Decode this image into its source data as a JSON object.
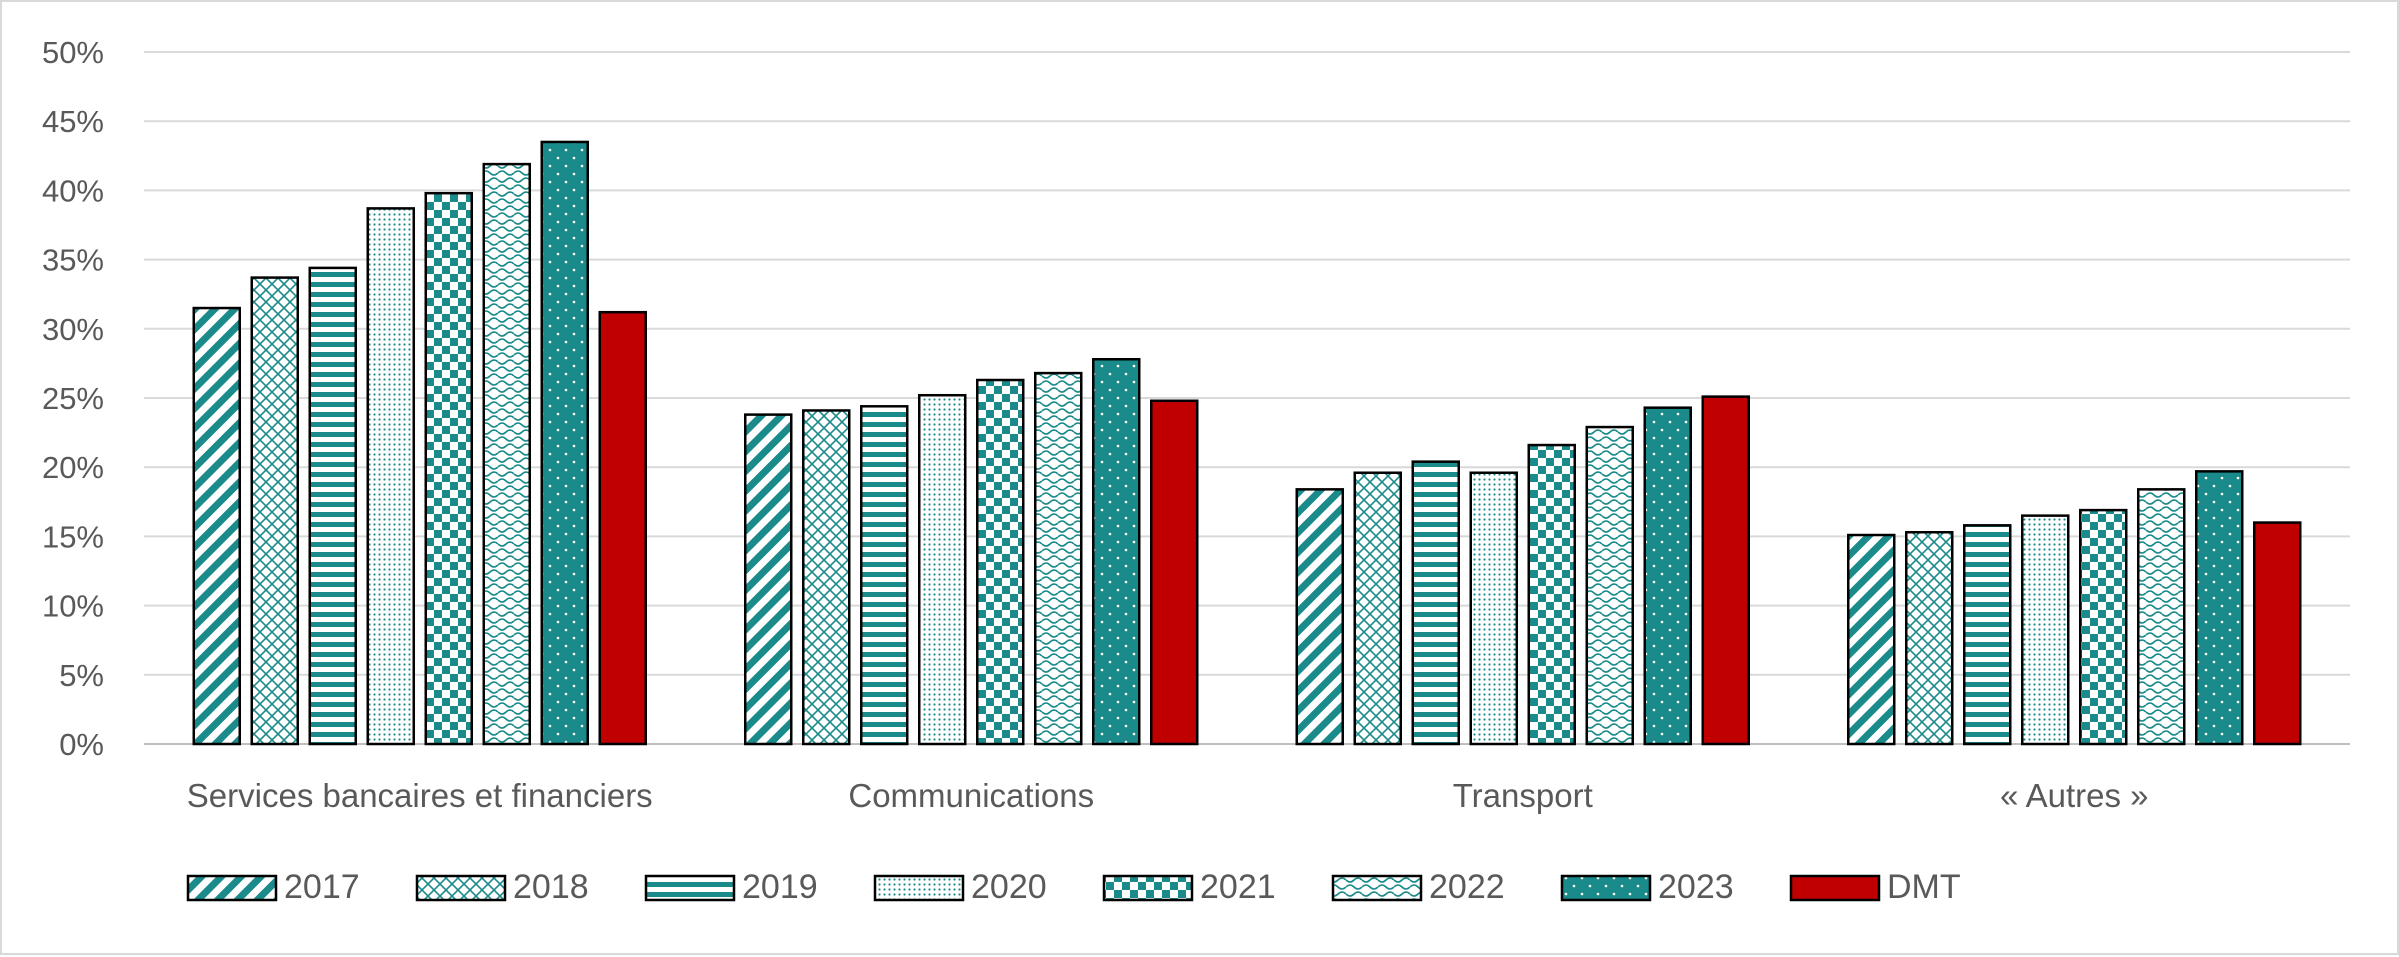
{
  "chart_data": {
    "type": "bar",
    "categories": [
      "Services bancaires et financiers",
      "Communications",
      "Transport",
      "« Autres »"
    ],
    "series": [
      {
        "name": "2017",
        "color": "#1a8a8a",
        "pattern": "diagonal-stripes",
        "values": [
          31.5,
          23.8,
          18.4,
          15.1
        ]
      },
      {
        "name": "2018",
        "color": "#1a8a8a",
        "pattern": "crosshatch",
        "values": [
          33.7,
          24.1,
          19.6,
          15.3
        ]
      },
      {
        "name": "2019",
        "color": "#1a8a8a",
        "pattern": "horizontal-stripes",
        "values": [
          34.4,
          24.4,
          20.4,
          15.8
        ]
      },
      {
        "name": "2020",
        "color": "#1a8a8a",
        "pattern": "small-dots",
        "values": [
          38.7,
          25.2,
          19.6,
          16.5
        ]
      },
      {
        "name": "2021",
        "color": "#1a8a8a",
        "pattern": "checkerboard",
        "values": [
          39.8,
          26.3,
          21.6,
          16.9
        ]
      },
      {
        "name": "2022",
        "color": "#1a8a8a",
        "pattern": "wave",
        "values": [
          41.9,
          26.8,
          22.9,
          18.4
        ]
      },
      {
        "name": "2023",
        "color": "#1a8a8a",
        "pattern": "solid-dots",
        "values": [
          43.5,
          27.8,
          24.3,
          19.7
        ]
      },
      {
        "name": "DMT",
        "color": "#c00000",
        "pattern": "solid",
        "values": [
          31.2,
          24.8,
          25.1,
          16.0
        ]
      }
    ],
    "y_ticks": [
      "0%",
      "5%",
      "10%",
      "15%",
      "20%",
      "25%",
      "30%",
      "35%",
      "40%",
      "45%",
      "50%"
    ],
    "ylim": [
      0,
      50
    ],
    "y_unit": "%",
    "title": "",
    "xlabel": "",
    "ylabel": "",
    "grid": true,
    "legend_position": "bottom"
  }
}
